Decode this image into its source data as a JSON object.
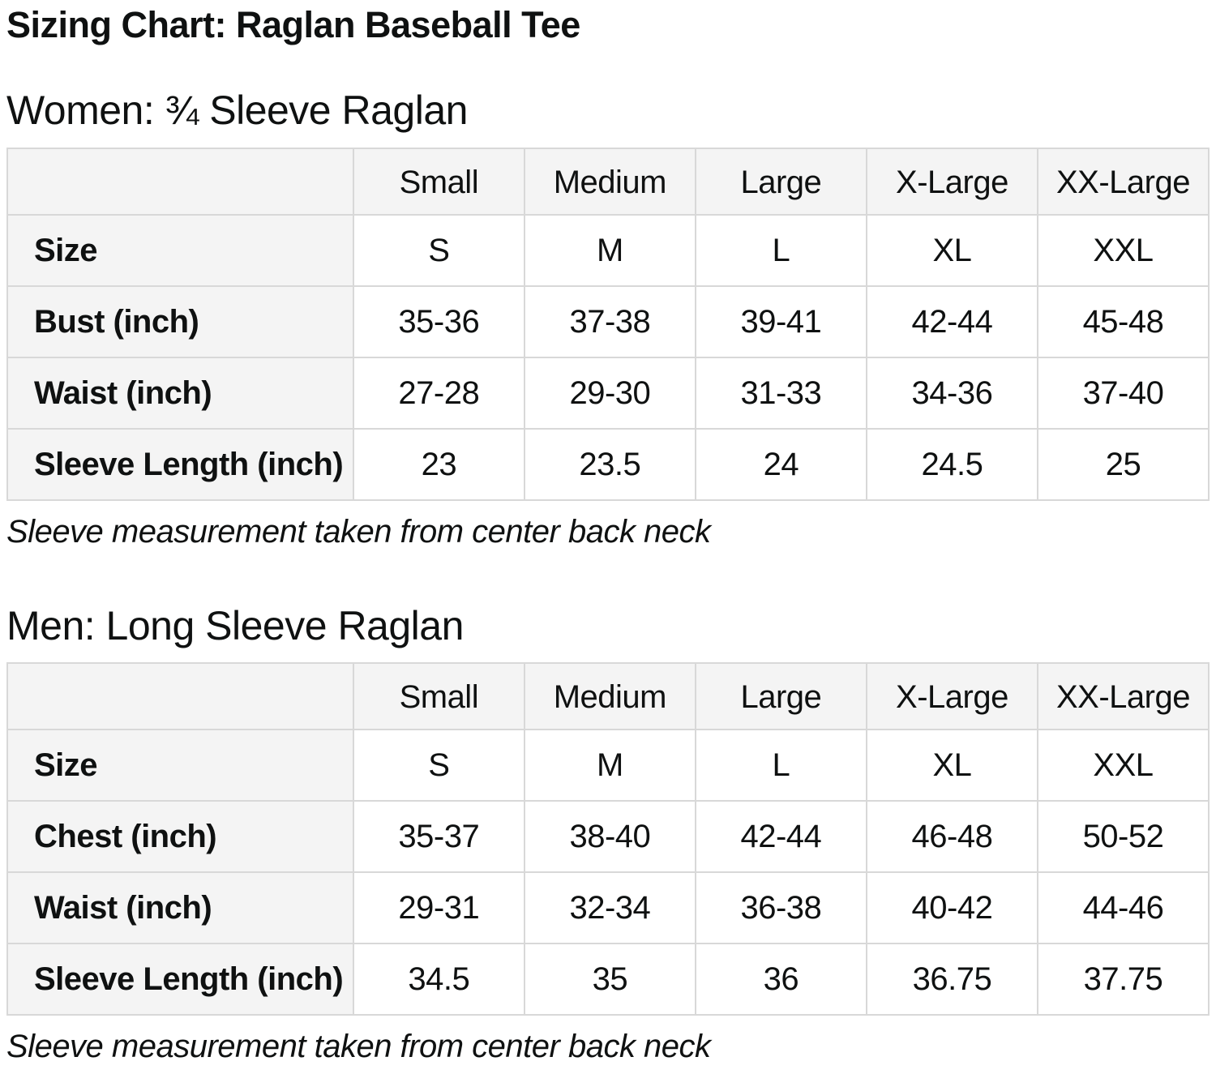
{
  "page": {
    "title": "Sizing Chart: Raglan Baseball Tee"
  },
  "colors": {
    "text": "#0f1111",
    "table_border": "#d8d8d8",
    "header_cell_bg": "#f4f4f4",
    "value_cell_bg": "#ffffff"
  },
  "sections": [
    {
      "heading": "Women: ¾ Sleeve Raglan",
      "note": "Sleeve measurement taken from center back neck",
      "table": {
        "column_headers": [
          "",
          "Small",
          "Medium",
          "Large",
          "X-Large",
          "XX-Large"
        ],
        "rows": [
          {
            "label": "Size",
            "values": [
              "S",
              "M",
              "L",
              "XL",
              "XXL"
            ]
          },
          {
            "label": "Bust (inch)",
            "values": [
              "35-36",
              "37-38",
              "39-41",
              "42-44",
              "45-48"
            ]
          },
          {
            "label": "Waist (inch)",
            "values": [
              "27-28",
              "29-30",
              "31-33",
              "34-36",
              "37-40"
            ]
          },
          {
            "label": "Sleeve Length (inch)",
            "values": [
              "23",
              "23.5",
              "24",
              "24.5",
              "25"
            ]
          }
        ]
      }
    },
    {
      "heading": "Men: Long Sleeve Raglan",
      "note": "Sleeve measurement taken from center back neck",
      "table": {
        "column_headers": [
          "",
          "Small",
          "Medium",
          "Large",
          "X-Large",
          "XX-Large"
        ],
        "rows": [
          {
            "label": "Size",
            "values": [
              "S",
              "M",
              "L",
              "XL",
              "XXL"
            ]
          },
          {
            "label": "Chest (inch)",
            "values": [
              "35-37",
              "38-40",
              "42-44",
              "46-48",
              "50-52"
            ]
          },
          {
            "label": "Waist (inch)",
            "values": [
              "29-31",
              "32-34",
              "36-38",
              "40-42",
              "44-46"
            ]
          },
          {
            "label": "Sleeve Length (inch)",
            "values": [
              "34.5",
              "35",
              "36",
              "36.75",
              "37.75"
            ]
          }
        ]
      }
    }
  ]
}
